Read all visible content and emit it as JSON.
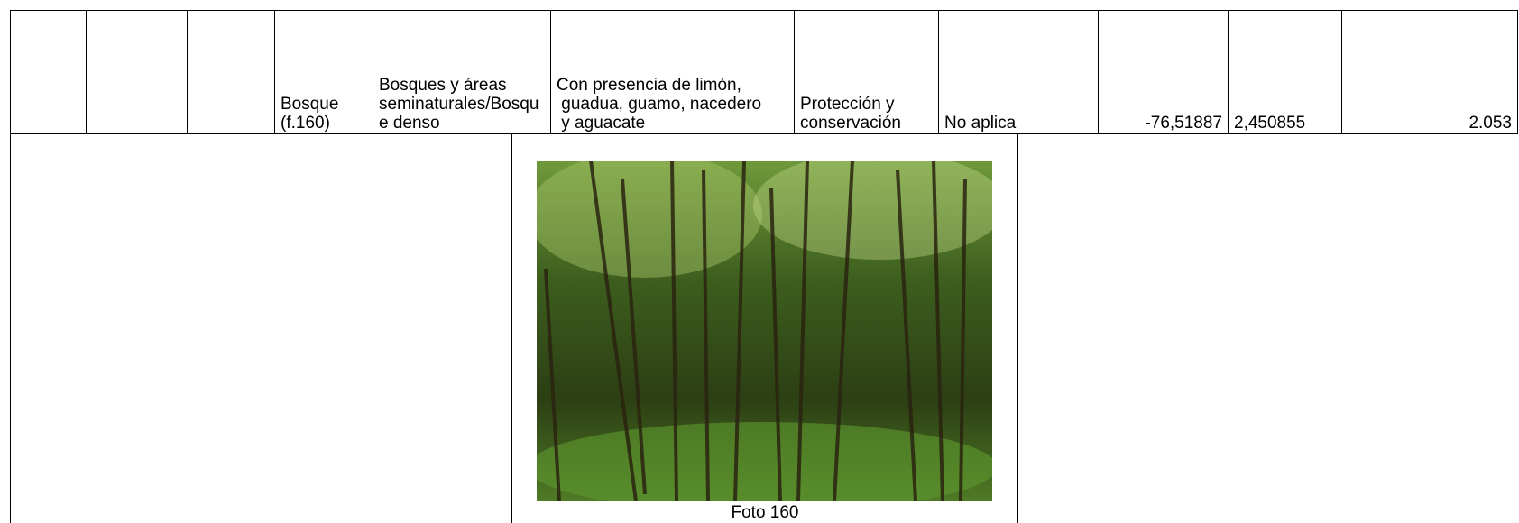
{
  "table": {
    "rows": [
      [
        "Bosque (f.160)",
        "Bosques y áreas seminaturales/Bosque denso",
        "Con presencia de limón,\n guadua, guamo, nacedero\n y aguacate",
        "Protección y conservación",
        "No aplica",
        "-76,51887",
        "2,450855",
        "2.053"
      ]
    ]
  },
  "photo": {
    "caption": "Foto 160"
  }
}
